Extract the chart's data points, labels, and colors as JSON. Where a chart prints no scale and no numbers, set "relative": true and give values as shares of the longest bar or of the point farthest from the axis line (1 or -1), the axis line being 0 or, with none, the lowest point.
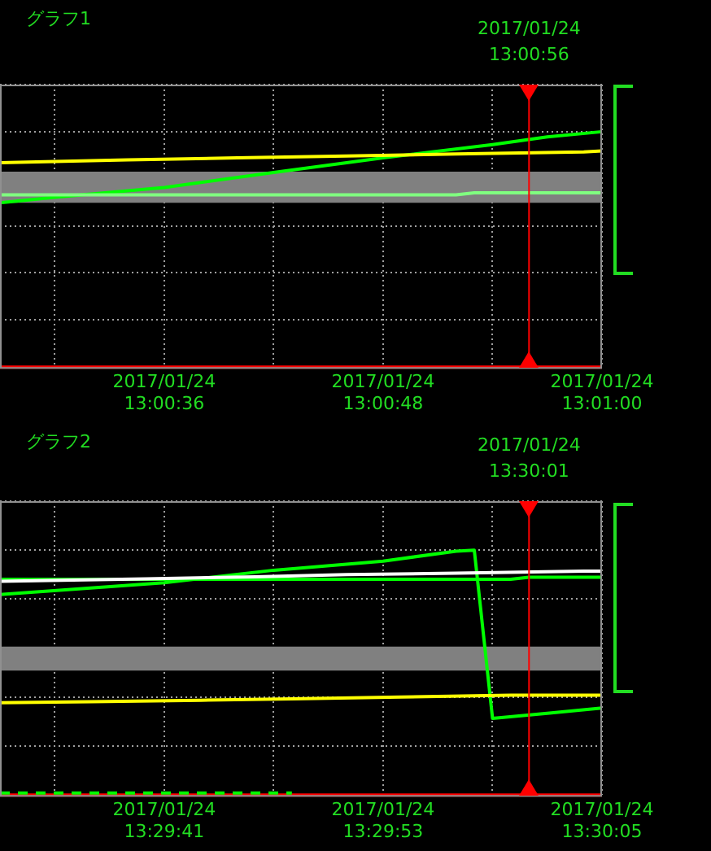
{
  "chart_data": [
    {
      "type": "line",
      "title": "グラフ1",
      "relative": true,
      "grid": true,
      "xlim": [
        "2017-01-24T13:00:27",
        "2017-01-24T13:01:00"
      ],
      "xticks": [
        {
          "value": "2017-01-24T13:00:30",
          "label": null
        },
        {
          "value": "2017-01-24T13:00:36",
          "label": "2017/01/24\n13:00:36"
        },
        {
          "value": "2017-01-24T13:00:42",
          "label": null
        },
        {
          "value": "2017-01-24T13:00:48",
          "label": "2017/01/24\n13:00:48"
        },
        {
          "value": "2017-01-24T13:00:54",
          "label": null
        },
        {
          "value": "2017-01-24T13:01:00",
          "label": "2017/01/24\n13:01:00"
        }
      ],
      "bands": [
        {
          "axis": "y",
          "from": 0.698,
          "to": 0.83,
          "color": "#808080"
        }
      ],
      "ref_lines": [
        {
          "axis": "x",
          "value": "2017-01-24T13:00:56",
          "label": "2017/01/24\n13:00:56",
          "color": "#ff0000"
        }
      ],
      "series": [
        {
          "color": "#ffff00",
          "x": [
            "2017-01-24T13:00:27",
            "2017-01-24T13:00:34",
            "2017-01-24T13:00:40",
            "2017-01-24T13:00:46",
            "2017-01-24T13:00:52",
            "2017-01-24T13:00:59",
            "2017-01-24T13:01:00"
          ],
          "values": [
            0.868,
            0.88,
            0.889,
            0.897,
            0.905,
            0.914,
            0.918
          ]
        },
        {
          "color": "#80ff80",
          "x": [
            "2017-01-24T13:00:27",
            "2017-01-24T13:00:52",
            "2017-01-24T13:00:53",
            "2017-01-24T13:01:00"
          ],
          "values": [
            0.732,
            0.732,
            0.74,
            0.74
          ]
        },
        {
          "color": "#00ff00",
          "x": [
            "2017-01-24T13:00:27",
            "2017-01-24T13:00:30",
            "2017-01-24T13:00:36",
            "2017-01-24T13:00:42",
            "2017-01-24T13:00:48",
            "2017-01-24T13:00:54",
            "2017-01-24T13:00:57",
            "2017-01-24T13:01:00"
          ],
          "values": [
            0.698,
            0.721,
            0.763,
            0.827,
            0.889,
            0.945,
            0.978,
            1
          ]
        },
        {
          "color": "#ff0000",
          "x": [
            "2017-01-24T13:00:27",
            "2017-01-24T13:01:00"
          ],
          "values": [
            0,
            0
          ]
        }
      ]
    },
    {
      "type": "line",
      "title": "グラフ2",
      "relative": true,
      "grid": true,
      "xlim": [
        "2017-01-24T13:29:32",
        "2017-01-24T13:30:05"
      ],
      "xticks": [
        {
          "value": "2017-01-24T13:29:35",
          "label": null
        },
        {
          "value": "2017-01-24T13:29:41",
          "label": "2017/01/24\n13:29:41"
        },
        {
          "value": "2017-01-24T13:29:47",
          "label": null
        },
        {
          "value": "2017-01-24T13:29:53",
          "label": "2017/01/24\n13:29:53"
        },
        {
          "value": "2017-01-24T13:29:59",
          "label": null
        },
        {
          "value": "2017-01-24T13:30:05",
          "label": "2017/01/24\n13:30:05"
        }
      ],
      "bands": [
        {
          "axis": "y",
          "from": 0.508,
          "to": 0.606,
          "color": "#808080"
        }
      ],
      "ref_lines": [
        {
          "axis": "x",
          "value": "2017-01-24T13:30:01",
          "label": "2017/01/24\n13:30:01",
          "color": "#ff0000"
        }
      ],
      "series": [
        {
          "color": "#ffffff",
          "x": [
            "2017-01-24T13:29:32",
            "2017-01-24T13:29:40",
            "2017-01-24T13:29:46",
            "2017-01-24T13:29:51",
            "2017-01-24T13:29:57",
            "2017-01-24T13:30:04",
            "2017-01-24T13:30:05"
          ],
          "values": [
            0.873,
            0.883,
            0.891,
            0.9,
            0.906,
            0.914,
            0.914
          ]
        },
        {
          "color": "#00ff00",
          "x": [
            "2017-01-24T13:29:32",
            "2017-01-24T13:30:00",
            "2017-01-24T13:30:01",
            "2017-01-24T13:30:05"
          ],
          "values": [
            0.881,
            0.881,
            0.889,
            0.889
          ]
        },
        {
          "color": "#ffff00",
          "x": [
            "2017-01-24T13:29:32",
            "2017-01-24T13:29:37",
            "2017-01-24T13:29:43",
            "2017-01-24T13:29:48",
            "2017-01-24T13:29:54",
            "2017-01-24T13:30:00",
            "2017-01-24T13:30:05"
          ],
          "values": [
            0.377,
            0.381,
            0.387,
            0.393,
            0.4,
            0.408,
            0.408
          ]
        },
        {
          "color": "#00ff00",
          "x": [
            "2017-01-24T13:29:32",
            "2017-01-24T13:29:41",
            "2017-01-24T13:29:47",
            "2017-01-24T13:29:53",
            "2017-01-24T13:29:57",
            "2017-01-24T13:29:58",
            "2017-01-24T13:29:59",
            "2017-01-24T13:30:02",
            "2017-01-24T13:30:05"
          ],
          "values": [
            0.819,
            0.867,
            0.918,
            0.955,
            0.996,
            1,
            0.313,
            0.334,
            0.355
          ]
        },
        {
          "color": "#00ff00",
          "line_style": "dashed",
          "x": [
            "2017-01-24T13:29:32",
            "2017-01-24T13:29:48"
          ],
          "values": [
            0.008,
            0.008
          ]
        },
        {
          "color": "#ff0000",
          "x": [
            "2017-01-24T13:29:32",
            "2017-01-24T13:30:05"
          ],
          "values": [
            0,
            0
          ]
        }
      ]
    }
  ]
}
